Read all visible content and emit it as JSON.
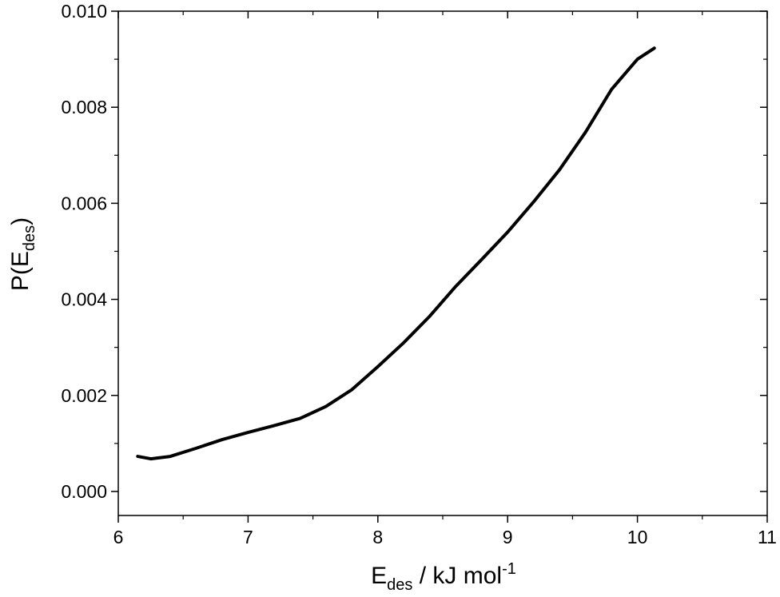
{
  "chart_data": {
    "type": "line",
    "xlabel": {
      "main": "E",
      "sub": "des",
      "rest": " / kJ mol",
      "sup": "-1"
    },
    "ylabel": {
      "main": "P(E",
      "sub": "des",
      "rest": ")"
    },
    "x": [
      6.15,
      6.25,
      6.4,
      6.6,
      6.8,
      7.0,
      7.2,
      7.4,
      7.6,
      7.8,
      8.0,
      8.2,
      8.4,
      8.6,
      8.8,
      9.0,
      9.2,
      9.4,
      9.6,
      9.8,
      10.0,
      10.13
    ],
    "series": [
      {
        "color": "#000000",
        "values": [
          0.00073,
          0.00068,
          0.00073,
          0.0009,
          0.00108,
          0.00123,
          0.00137,
          0.00152,
          0.00177,
          0.00212,
          0.0026,
          0.0031,
          0.00365,
          0.00427,
          0.00483,
          0.0054,
          0.00603,
          0.0067,
          0.00748,
          0.00837,
          0.009,
          0.00923
        ]
      }
    ],
    "xlim": [
      6,
      11
    ],
    "ylim": [
      -0.0005,
      0.01
    ],
    "xticks": [
      6,
      7,
      8,
      9,
      10,
      11
    ],
    "yticks": [
      {
        "value": 0,
        "label": "0.000"
      },
      0.002,
      0.004,
      0.006,
      0.008,
      {
        "value": 0.01,
        "label": "0.010"
      }
    ],
    "minor_xticks": [
      6.5,
      7.5,
      8.5,
      9.5,
      10.5
    ],
    "minor_yticks": [
      0.001,
      0.003,
      0.005,
      0.007,
      0.009
    ],
    "grid": false
  }
}
